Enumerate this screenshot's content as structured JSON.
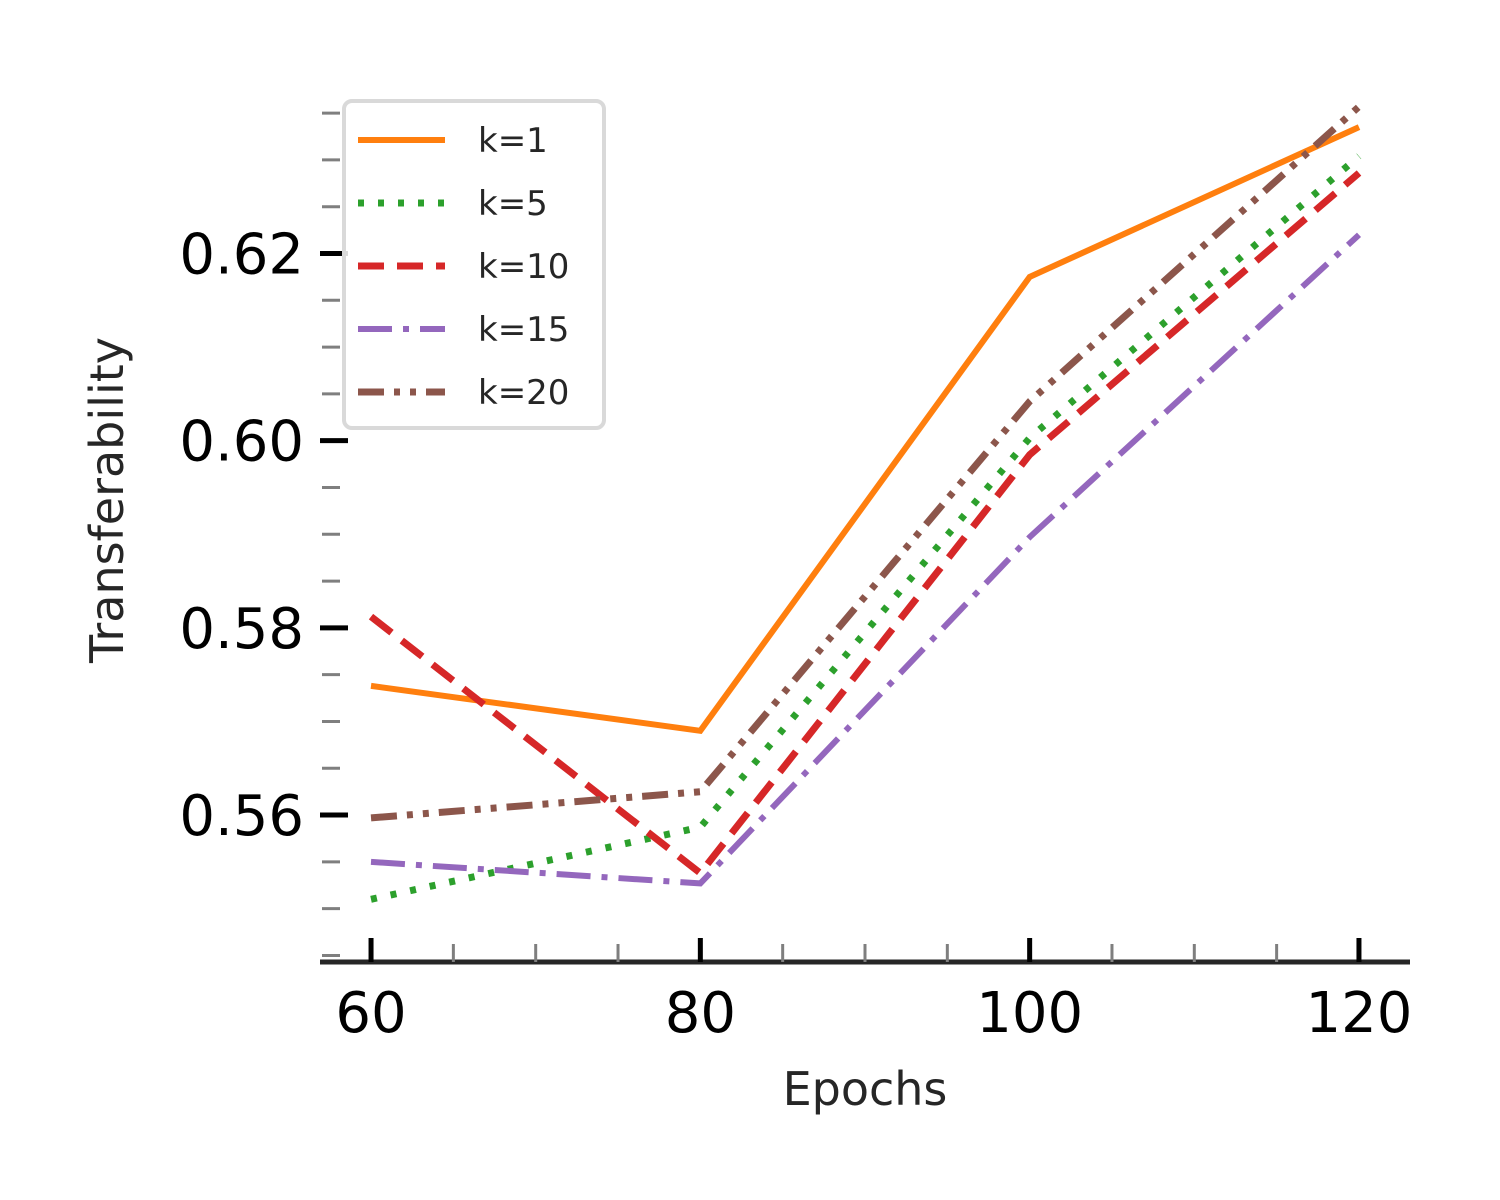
{
  "chart_data": {
    "type": "line",
    "title": "",
    "xlabel": "Epochs",
    "ylabel": "Transferability",
    "x": [
      60,
      80,
      100,
      120
    ],
    "xlim": [
      56.9,
      123.1
    ],
    "ylim": [
      0.5443,
      0.6364
    ],
    "xticks": [
      60,
      80,
      100,
      120
    ],
    "xtick_labels": [
      "60",
      "80",
      "100",
      "120"
    ],
    "yticks": [
      0.56,
      0.58,
      0.6,
      0.62
    ],
    "ytick_labels": [
      "0.56",
      "0.58",
      "0.60",
      "0.62"
    ],
    "grid": false,
    "legend_position": "top-left",
    "series": [
      {
        "name": "k=1",
        "values": [
          0.5738,
          0.569,
          0.6175,
          0.6335
        ],
        "color": "#ff7f0e",
        "style": "solid"
      },
      {
        "name": "k=5",
        "values": [
          0.551,
          0.5587,
          0.6003,
          0.6304
        ],
        "color": "#2ca02c",
        "style": "dotted"
      },
      {
        "name": "k=10",
        "values": [
          0.5812,
          0.5538,
          0.5985,
          0.6286
        ],
        "color": "#d62728",
        "style": "dashed"
      },
      {
        "name": "k=15",
        "values": [
          0.555,
          0.5527,
          0.5897,
          0.622
        ],
        "color": "#9467bd",
        "style": "dashdot"
      },
      {
        "name": "k=20",
        "values": [
          0.5597,
          0.5625,
          0.6042,
          0.6357
        ],
        "color": "#8c564b",
        "style": "dashdotdot"
      }
    ]
  }
}
